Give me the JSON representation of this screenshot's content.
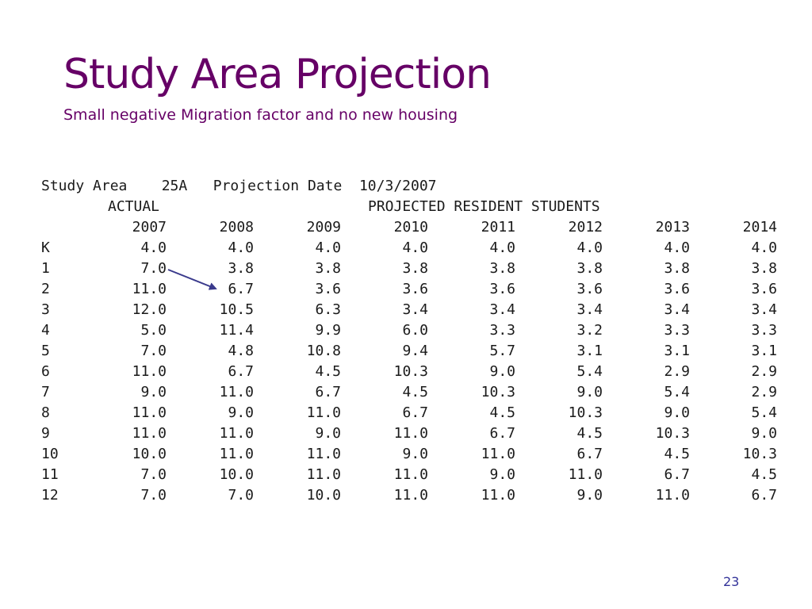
{
  "slide": {
    "title": "Study Area Projection",
    "subtitle": "Small negative Migration factor and no new housing",
    "page_number": "23",
    "accent_color": "#660066",
    "page_number_color": "#333399"
  },
  "report": {
    "header_line": "Study Area    25A   Projection Date  10/3/2007",
    "actual_label": "ACTUAL",
    "projected_label": "PROJECTED RESIDENT STUDENTS",
    "years": [
      "2007",
      "2008",
      "2009",
      "2010",
      "2011",
      "2012",
      "2013",
      "2014"
    ],
    "rows": [
      {
        "grade": "K",
        "values": [
          "4.0",
          "4.0",
          "4.0",
          "4.0",
          "4.0",
          "4.0",
          "4.0",
          "4.0"
        ]
      },
      {
        "grade": "1",
        "values": [
          "7.0",
          "3.8",
          "3.8",
          "3.8",
          "3.8",
          "3.8",
          "3.8",
          "3.8"
        ]
      },
      {
        "grade": "2",
        "values": [
          "11.0",
          "6.7",
          "3.6",
          "3.6",
          "3.6",
          "3.6",
          "3.6",
          "3.6"
        ]
      },
      {
        "grade": "3",
        "values": [
          "12.0",
          "10.5",
          "6.3",
          "3.4",
          "3.4",
          "3.4",
          "3.4",
          "3.4"
        ]
      },
      {
        "grade": "4",
        "values": [
          "5.0",
          "11.4",
          "9.9",
          "6.0",
          "3.3",
          "3.2",
          "3.3",
          "3.3"
        ]
      },
      {
        "grade": "5",
        "values": [
          "7.0",
          "4.8",
          "10.8",
          "9.4",
          "5.7",
          "3.1",
          "3.1",
          "3.1"
        ]
      },
      {
        "grade": "6",
        "values": [
          "11.0",
          "6.7",
          "4.5",
          "10.3",
          "9.0",
          "5.4",
          "2.9",
          "2.9"
        ]
      },
      {
        "grade": "7",
        "values": [
          "9.0",
          "11.0",
          "6.7",
          "4.5",
          "10.3",
          "9.0",
          "5.4",
          "2.9"
        ]
      },
      {
        "grade": "8",
        "values": [
          "11.0",
          "9.0",
          "11.0",
          "6.7",
          "4.5",
          "10.3",
          "9.0",
          "5.4"
        ]
      },
      {
        "grade": "9",
        "values": [
          "11.0",
          "11.0",
          "9.0",
          "11.0",
          "6.7",
          "4.5",
          "10.3",
          "9.0"
        ]
      },
      {
        "grade": "10",
        "values": [
          "10.0",
          "11.0",
          "11.0",
          "9.0",
          "11.0",
          "6.7",
          "4.5",
          "10.3"
        ]
      },
      {
        "grade": "11",
        "values": [
          "7.0",
          "10.0",
          "11.0",
          "11.0",
          "9.0",
          "11.0",
          "6.7",
          "4.5"
        ]
      },
      {
        "grade": "12",
        "values": [
          "7.0",
          "7.0",
          "10.0",
          "11.0",
          "11.0",
          "9.0",
          "11.0",
          "6.7"
        ]
      }
    ],
    "arrow_color": "#3a3a8c"
  }
}
